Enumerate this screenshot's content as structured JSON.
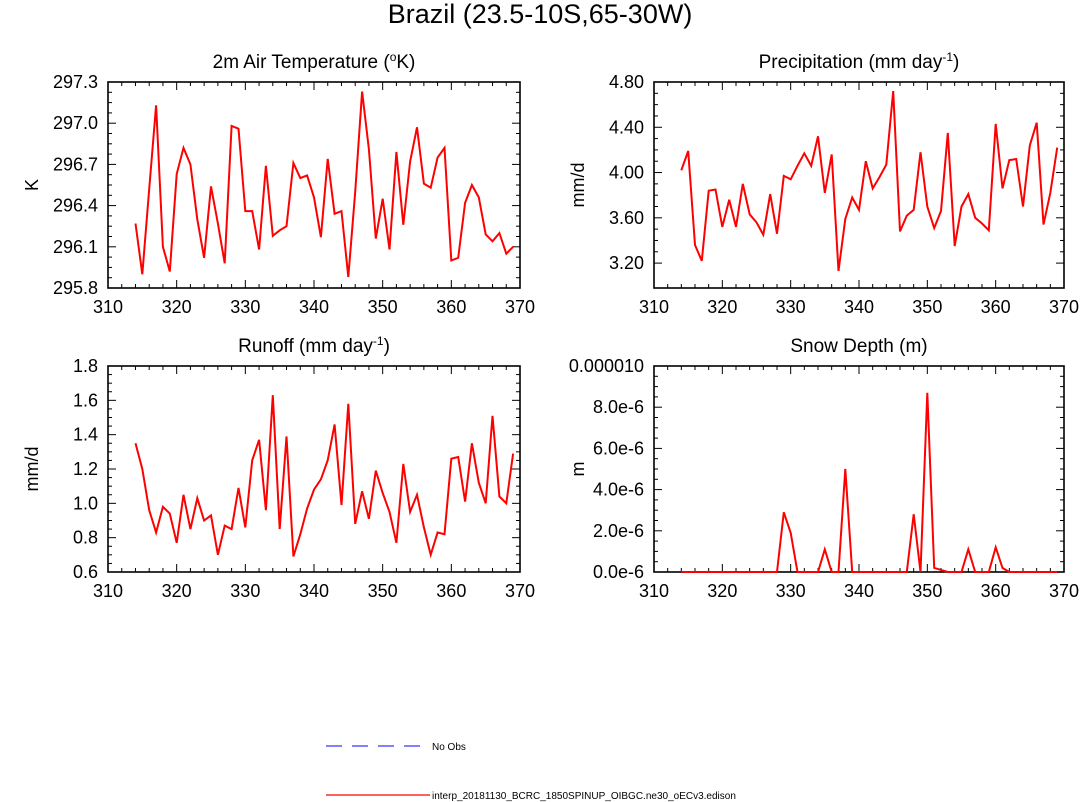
{
  "title": "Brazil (23.5-10S,65-30W)",
  "colors": {
    "series": "#ff0000",
    "obs": "#3333ff",
    "axis": "#000000"
  },
  "legend": {
    "items": [
      {
        "label": "No Obs",
        "style": "dashed",
        "color": "#3333ff"
      },
      {
        "label": "interp_20181130_BCRC_1850SPINUP_OIBGC.ne30_oECv3.edison",
        "style": "solid",
        "color": "#ff0000"
      }
    ]
  },
  "chart_data": [
    {
      "type": "line",
      "title": "2m Air Temperature",
      "title_prefix": "2m Air Temperature (",
      "title_sup": "o",
      "title_suffix": "K)",
      "xlabel": "",
      "ylabel": "K",
      "xlim": [
        310,
        370
      ],
      "ylim": [
        295.8,
        297.3
      ],
      "xticks": [
        "310",
        "320",
        "330",
        "340",
        "350",
        "360",
        "370"
      ],
      "yticks": [
        "295.8",
        "296.1",
        "296.4",
        "296.7",
        "297.0",
        "297.3"
      ],
      "x": [
        314,
        315,
        316,
        317,
        318,
        319,
        320,
        321,
        322,
        323,
        324,
        325,
        326,
        327,
        328,
        329,
        330,
        331,
        332,
        333,
        334,
        335,
        336,
        337,
        338,
        339,
        340,
        341,
        342,
        343,
        344,
        345,
        346,
        347,
        348,
        349,
        350,
        351,
        352,
        353,
        354,
        355,
        356,
        357,
        358,
        359,
        360,
        361,
        362,
        363,
        364,
        365,
        366,
        367,
        368,
        369
      ],
      "series": [
        {
          "name": "interp_20181130_BCRC_1850SPINUP_OIBGC.ne30_oECv3.edison",
          "values": [
            296.27,
            295.9,
            296.52,
            297.13,
            296.1,
            295.92,
            296.63,
            296.82,
            296.7,
            296.3,
            296.02,
            296.54,
            296.27,
            295.98,
            296.98,
            296.96,
            296.36,
            296.36,
            296.08,
            296.69,
            296.18,
            296.22,
            296.25,
            296.71,
            296.6,
            296.62,
            296.46,
            296.17,
            296.74,
            296.34,
            296.36,
            295.88,
            296.5,
            297.23,
            296.81,
            296.16,
            296.45,
            296.08,
            296.79,
            296.26,
            296.72,
            296.97,
            296.56,
            296.53,
            296.75,
            296.82,
            296.0,
            296.02,
            296.42,
            296.55,
            296.46,
            296.19,
            296.14,
            296.2,
            296.05,
            296.1
          ]
        }
      ]
    },
    {
      "type": "line",
      "title": "Precipitation",
      "title_prefix": "Precipitation (mm day",
      "title_sup": "-1",
      "title_suffix": ")",
      "xlabel": "",
      "ylabel": "mm/d",
      "xlim": [
        310,
        370
      ],
      "ylim": [
        2.98,
        4.8
      ],
      "yticks_values": [
        3.2,
        3.6,
        4.0,
        4.4,
        4.8
      ],
      "xticks": [
        "310",
        "320",
        "330",
        "340",
        "350",
        "360",
        "370"
      ],
      "yticks": [
        "3.20",
        "3.60",
        "4.00",
        "4.40",
        "4.80"
      ],
      "x": [
        314,
        315,
        316,
        317,
        318,
        319,
        320,
        321,
        322,
        323,
        324,
        325,
        326,
        327,
        328,
        329,
        330,
        331,
        332,
        333,
        334,
        335,
        336,
        337,
        338,
        339,
        340,
        341,
        342,
        343,
        344,
        345,
        346,
        347,
        348,
        349,
        350,
        351,
        352,
        353,
        354,
        355,
        356,
        357,
        358,
        359,
        360,
        361,
        362,
        363,
        364,
        365,
        366,
        367,
        368,
        369
      ],
      "series": [
        {
          "name": "interp_20181130_BCRC_1850SPINUP_OIBGC.ne30_oECv3.edison",
          "values": [
            4.02,
            4.19,
            3.36,
            3.22,
            3.84,
            3.85,
            3.52,
            3.76,
            3.52,
            3.9,
            3.63,
            3.56,
            3.45,
            3.81,
            3.46,
            3.97,
            3.94,
            4.06,
            4.17,
            4.06,
            4.32,
            3.82,
            4.16,
            3.13,
            3.59,
            3.78,
            3.67,
            4.1,
            3.86,
            3.96,
            4.07,
            4.72,
            3.48,
            3.62,
            3.67,
            4.18,
            3.7,
            3.51,
            3.66,
            4.35,
            3.35,
            3.7,
            3.81,
            3.6,
            3.55,
            3.49,
            4.43,
            3.86,
            4.11,
            4.12,
            3.7,
            4.24,
            4.44,
            3.54,
            3.82,
            4.22
          ]
        }
      ]
    },
    {
      "type": "line",
      "title": "Runoff",
      "title_prefix": "Runoff (mm day",
      "title_sup": "-1",
      "title_suffix": ")",
      "xlabel": "",
      "ylabel": "mm/d",
      "xlim": [
        310,
        370
      ],
      "ylim": [
        0.6,
        1.8
      ],
      "xticks": [
        "310",
        "320",
        "330",
        "340",
        "350",
        "360",
        "370"
      ],
      "yticks": [
        "0.6",
        "0.8",
        "1.0",
        "1.2",
        "1.4",
        "1.6",
        "1.8"
      ],
      "x": [
        314,
        315,
        316,
        317,
        318,
        319,
        320,
        321,
        322,
        323,
        324,
        325,
        326,
        327,
        328,
        329,
        330,
        331,
        332,
        333,
        334,
        335,
        336,
        337,
        338,
        339,
        340,
        341,
        342,
        343,
        344,
        345,
        346,
        347,
        348,
        349,
        350,
        351,
        352,
        353,
        354,
        355,
        356,
        357,
        358,
        359,
        360,
        361,
        362,
        363,
        364,
        365,
        366,
        367,
        368,
        369
      ],
      "series": [
        {
          "name": "interp_20181130_BCRC_1850SPINUP_OIBGC.ne30_oECv3.edison",
          "values": [
            1.35,
            1.2,
            0.96,
            0.83,
            0.98,
            0.94,
            0.77,
            1.05,
            0.85,
            1.03,
            0.9,
            0.93,
            0.7,
            0.87,
            0.85,
            1.09,
            0.86,
            1.25,
            1.37,
            0.96,
            1.63,
            0.85,
            1.39,
            0.69,
            0.82,
            0.97,
            1.08,
            1.14,
            1.25,
            1.46,
            0.99,
            1.58,
            0.88,
            1.07,
            0.91,
            1.19,
            1.06,
            0.95,
            0.77,
            1.23,
            0.95,
            1.05,
            0.86,
            0.7,
            0.83,
            0.82,
            1.26,
            1.27,
            1.01,
            1.35,
            1.12,
            1.0,
            1.51,
            1.04,
            1.0,
            1.29
          ]
        }
      ]
    },
    {
      "type": "line",
      "title": "Snow Depth",
      "title_prefix": "Snow Depth (m)",
      "title_sup": "",
      "title_suffix": "",
      "xlabel": "",
      "ylabel": "m",
      "xlim": [
        310,
        370
      ],
      "ylim": [
        0,
        1e-05
      ],
      "xticks": [
        "310",
        "320",
        "330",
        "340",
        "350",
        "360",
        "370"
      ],
      "yticks": [
        "0.0e-6",
        "2.0e-6",
        "4.0e-6",
        "6.0e-6",
        "8.0e-6",
        "0.000010"
      ],
      "x": [
        314,
        315,
        316,
        317,
        318,
        319,
        320,
        321,
        322,
        323,
        324,
        325,
        326,
        327,
        328,
        329,
        330,
        331,
        332,
        333,
        334,
        335,
        336,
        337,
        338,
        339,
        340,
        341,
        342,
        343,
        344,
        345,
        346,
        347,
        348,
        349,
        350,
        351,
        352,
        353,
        354,
        355,
        356,
        357,
        358,
        359,
        360,
        361,
        362,
        363,
        364,
        365,
        366,
        367,
        368,
        369
      ],
      "series": [
        {
          "name": "interp_20181130_BCRC_1850SPINUP_OIBGC.ne30_oECv3.edison",
          "values": [
            0,
            0,
            0,
            0,
            0,
            0,
            0,
            0,
            0,
            0,
            0,
            0,
            0,
            0,
            0,
            2.9e-06,
            1.9e-06,
            0,
            0,
            0,
            0,
            1.1e-06,
            0,
            0,
            5e-06,
            0,
            0,
            0,
            0,
            0,
            0,
            0,
            0,
            0,
            2.8e-06,
            0,
            8.7e-06,
            2e-07,
            1e-07,
            0,
            0,
            0,
            1.1e-06,
            0,
            0,
            0,
            1.2e-06,
            2e-07,
            0,
            0,
            0,
            0,
            0,
            0,
            0,
            0
          ]
        }
      ]
    }
  ]
}
